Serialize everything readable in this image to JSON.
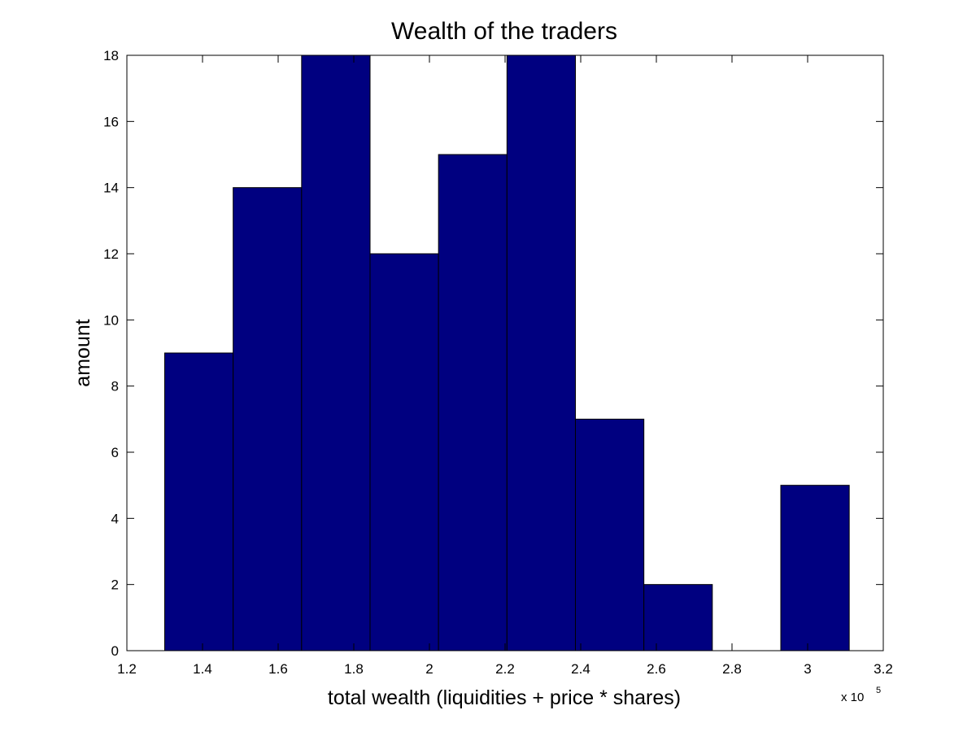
{
  "chart_data": {
    "type": "bar",
    "title": "Wealth of the traders",
    "xlabel": "total wealth (liquidities + price * shares)",
    "ylabel": "amount",
    "x_multiplier": "x 10",
    "x_multiplier_exponent": "5",
    "xlim": [
      1.2,
      3.2
    ],
    "ylim": [
      0,
      18
    ],
    "xticks": [
      "1.2",
      "1.4",
      "1.6",
      "1.8",
      "2",
      "2.2",
      "2.4",
      "2.6",
      "2.8",
      "3",
      "3.2"
    ],
    "yticks": [
      "0",
      "2",
      "4",
      "6",
      "8",
      "10",
      "12",
      "14",
      "16",
      "18"
    ],
    "bin_edges": [
      1.3,
      1.481,
      1.662,
      1.843,
      2.024,
      2.205,
      2.386,
      2.567,
      2.748,
      2.929,
      3.11
    ],
    "values": [
      9,
      14,
      18,
      12,
      15,
      18,
      7,
      2,
      0,
      5
    ],
    "bar_color": "#000080",
    "grid": false
  }
}
